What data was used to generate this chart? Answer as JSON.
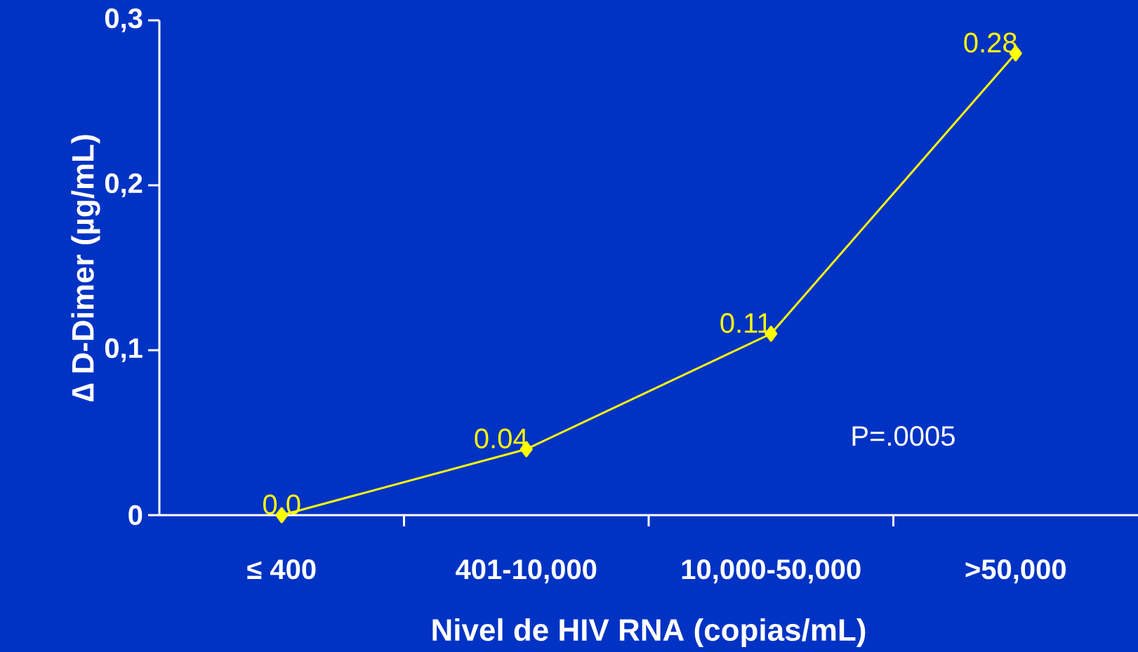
{
  "chart_data": {
    "type": "line",
    "xlabel": "Nivel de HIV RNA (copias/mL)",
    "ylabel": "∆ D-Dimer (µg/mL)",
    "categories": [
      "≤ 400",
      "401-10,000",
      "10,000-50,000",
      ">50,000"
    ],
    "series": [
      {
        "color": "#ffff00",
        "values": [
          0,
          0.04,
          0.11,
          0.28
        ],
        "value_labels": [
          "0.0",
          "0.04",
          "0.11",
          "0.28"
        ]
      }
    ],
    "ylim": [
      0,
      0.3
    ],
    "yticks": [
      {
        "value": 0,
        "label": "0"
      },
      {
        "value": 0.1,
        "label": "0,1"
      },
      {
        "value": 0.2,
        "label": "0,2"
      },
      {
        "value": 0.3,
        "label": "0,3"
      }
    ],
    "marker": "diamond",
    "line_style": "solid",
    "annotations": [
      "P=.0005"
    ]
  }
}
